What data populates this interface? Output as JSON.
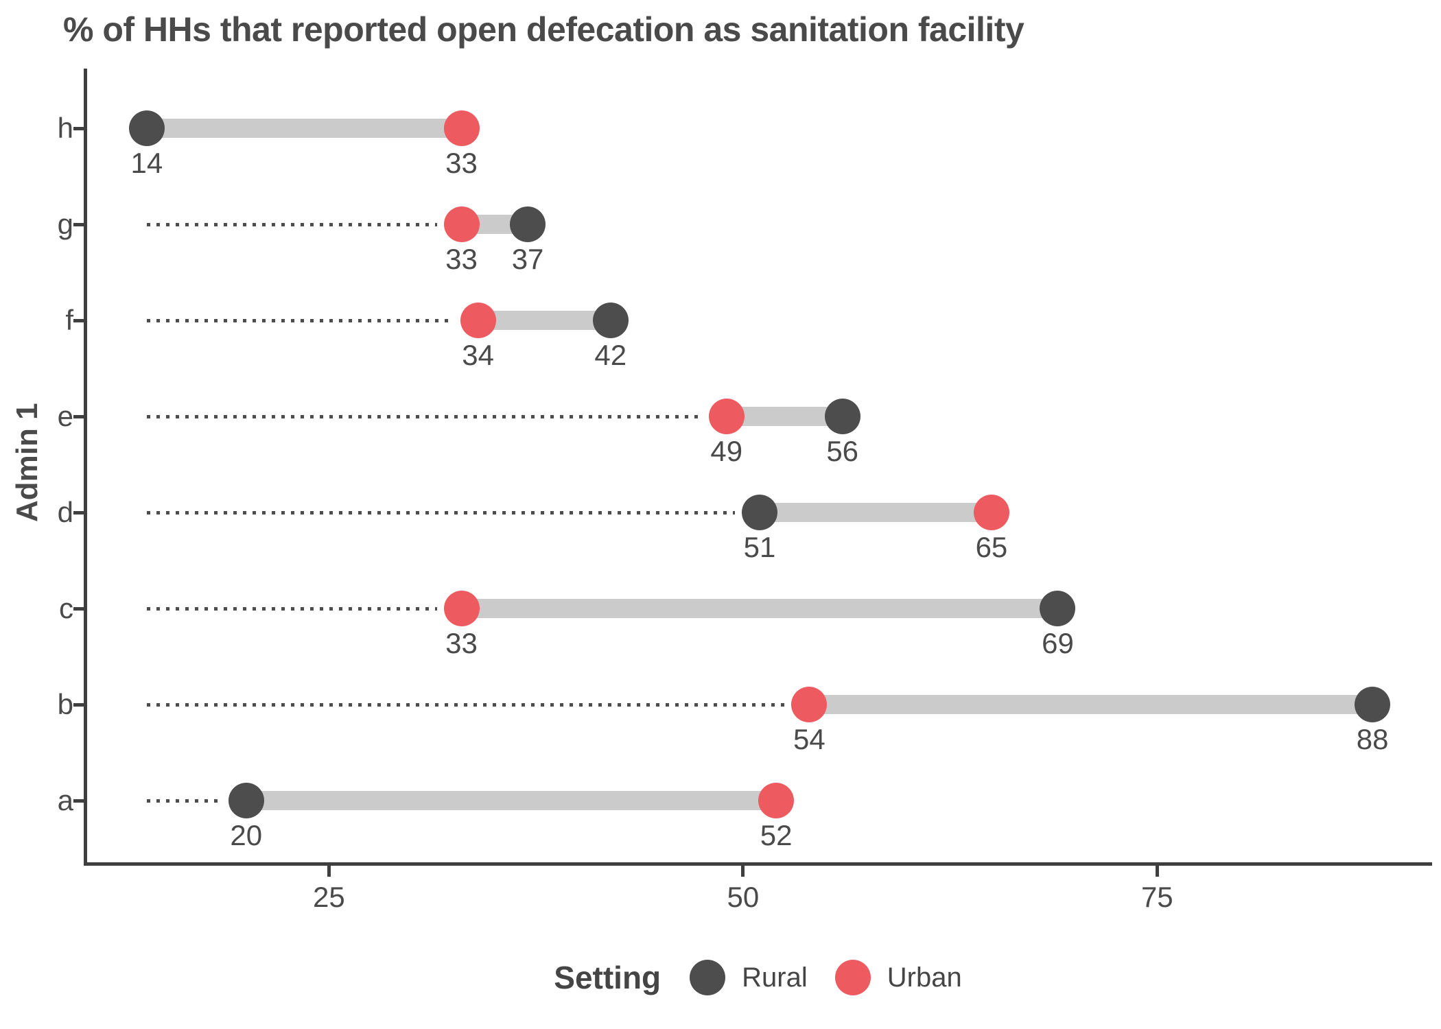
{
  "title": "% of HHs that reported open defecation as sanitation facility",
  "y_axis_label": "Admin 1",
  "legend": {
    "title": "Setting",
    "items": [
      {
        "label": "Rural",
        "color": "#4d4d4d"
      },
      {
        "label": "Urban",
        "color": "#ed5a5f"
      }
    ]
  },
  "colors": {
    "rural": "#4d4d4d",
    "urban": "#ed5a5f",
    "band": "#cbcbcb",
    "leader": "#4d4d4d",
    "axis": "#3f3f3f",
    "text": "#4a4a4a"
  },
  "chart_data": {
    "type": "dumbbell",
    "title": "% of HHs that reported open defecation as sanitation facility",
    "xlabel": "",
    "ylabel": "Admin 1",
    "categories": [
      "h",
      "g",
      "f",
      "e",
      "d",
      "c",
      "b",
      "a"
    ],
    "series": [
      {
        "name": "Rural",
        "values": [
          14,
          37,
          42,
          56,
          51,
          69,
          88,
          20
        ]
      },
      {
        "name": "Urban",
        "values": [
          33,
          33,
          34,
          49,
          65,
          33,
          54,
          52
        ]
      }
    ],
    "value_labels_shown": true,
    "x_ticks": [
      25,
      50,
      75
    ],
    "x_domain": [
      10.4,
      91.6
    ],
    "leader_origin": 14,
    "grid": false,
    "legend_position": "bottom"
  }
}
